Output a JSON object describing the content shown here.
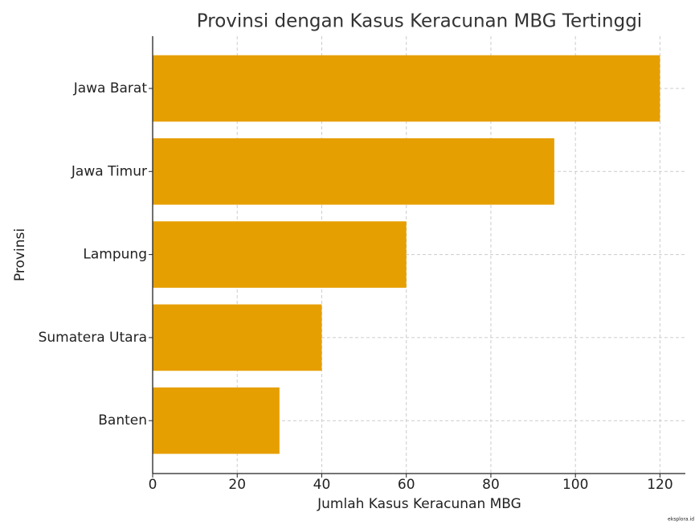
{
  "chart_data": {
    "type": "barh",
    "title": "Provinsi dengan Kasus Keracunan MBG Tertinggi",
    "x_label": "Jumlah Kasus Keracunan MBG",
    "y_label": "Provinsi",
    "categories": [
      "Jawa Barat",
      "Jawa Timur",
      "Lampung",
      "Sumatera Utara",
      "Banten"
    ],
    "values": [
      120,
      95,
      60,
      40,
      30
    ],
    "color": "#e69f00",
    "xlim": [
      0,
      126
    ],
    "xticks": [
      0,
      20,
      40,
      60,
      80,
      100,
      120
    ],
    "grid": true,
    "watermark": "eksplora.id"
  }
}
